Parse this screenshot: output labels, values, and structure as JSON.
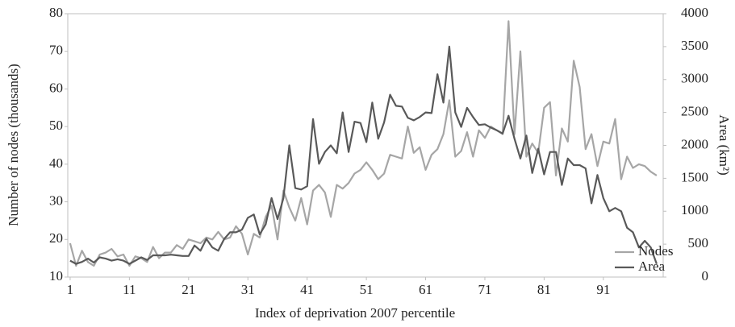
{
  "chart_data": {
    "type": "line",
    "x_label": "Index of deprivation 2007 percentile",
    "y_label": "Number of nodes (thousands)",
    "y2_label": "Area (km²)",
    "x": [
      1,
      2,
      3,
      4,
      5,
      6,
      7,
      8,
      9,
      10,
      11,
      12,
      13,
      14,
      15,
      16,
      17,
      18,
      19,
      20,
      21,
      22,
      23,
      24,
      25,
      26,
      27,
      28,
      29,
      30,
      31,
      32,
      33,
      34,
      35,
      36,
      37,
      38,
      39,
      40,
      41,
      42,
      43,
      44,
      45,
      46,
      47,
      48,
      49,
      50,
      51,
      52,
      53,
      54,
      55,
      56,
      57,
      58,
      59,
      60,
      61,
      62,
      63,
      64,
      65,
      66,
      67,
      68,
      69,
      70,
      71,
      72,
      73,
      74,
      75,
      76,
      77,
      78,
      79,
      80,
      81,
      82,
      83,
      84,
      85,
      86,
      87,
      88,
      89,
      90,
      91,
      92,
      93,
      94,
      95,
      96,
      97,
      98,
      99,
      100
    ],
    "xlim": [
      0.6,
      101.1
    ],
    "xticks": [
      1,
      11,
      21,
      31,
      41,
      51,
      61,
      71,
      81,
      91
    ],
    "ylim": [
      10,
      80
    ],
    "yticks": [
      10,
      20,
      30,
      40,
      50,
      60,
      70,
      80
    ],
    "y2lim": [
      0,
      4000
    ],
    "y2ticks": [
      0,
      500,
      1000,
      1500,
      2000,
      2500,
      3000,
      3500,
      4000
    ],
    "legend": "lower right",
    "series": [
      {
        "name": "Nodes",
        "color": "#a6a6a6",
        "values": [
          19,
          13,
          17,
          14,
          13,
          16,
          16.5,
          17.5,
          15.5,
          16,
          13,
          15.5,
          15,
          14,
          18,
          15,
          16.5,
          16.5,
          18.5,
          17.5,
          20,
          19.5,
          19,
          20.5,
          20,
          22,
          20,
          20.5,
          23.5,
          21.5,
          16,
          21.5,
          20.5,
          26,
          29,
          20,
          33,
          28.5,
          25,
          31,
          24,
          33,
          34.5,
          32.5,
          26,
          34.5,
          33.5,
          35,
          37.5,
          38.5,
          40.5,
          38.5,
          36,
          37.5,
          42.5,
          42,
          41.5,
          50,
          43,
          44.5,
          38.5,
          42.5,
          44,
          48,
          57,
          42,
          43.5,
          48.5,
          42,
          49,
          47,
          50,
          49,
          48,
          78,
          48,
          70,
          42,
          45.5,
          43,
          55,
          56.5,
          37,
          49.5,
          46,
          67.5,
          60.5,
          44,
          48,
          39.5,
          46,
          45.5,
          52,
          36,
          42,
          39,
          40,
          39.5,
          38,
          37
        ]
      },
      {
        "name": "Area",
        "color": "#595959",
        "axis": "y2",
        "values": [
          250,
          200,
          230,
          280,
          220,
          300,
          280,
          250,
          270,
          250,
          200,
          250,
          300,
          260,
          330,
          330,
          330,
          340,
          330,
          320,
          320,
          480,
          400,
          580,
          450,
          400,
          580,
          680,
          680,
          720,
          900,
          950,
          650,
          800,
          1200,
          880,
          1200,
          2000,
          1350,
          1330,
          1380,
          2400,
          1720,
          1900,
          2000,
          1880,
          2500,
          1900,
          2360,
          2340,
          2050,
          2650,
          2100,
          2350,
          2770,
          2600,
          2590,
          2420,
          2380,
          2430,
          2500,
          2490,
          3080,
          2650,
          3500,
          2500,
          2280,
          2570,
          2430,
          2310,
          2320,
          2270,
          2230,
          2180,
          2450,
          2100,
          1800,
          2150,
          1580,
          1950,
          1560,
          1900,
          1900,
          1400,
          1800,
          1700,
          1700,
          1650,
          1120,
          1550,
          1200,
          1000,
          1050,
          1000,
          750,
          680,
          450,
          550,
          450,
          200
        ]
      }
    ]
  }
}
